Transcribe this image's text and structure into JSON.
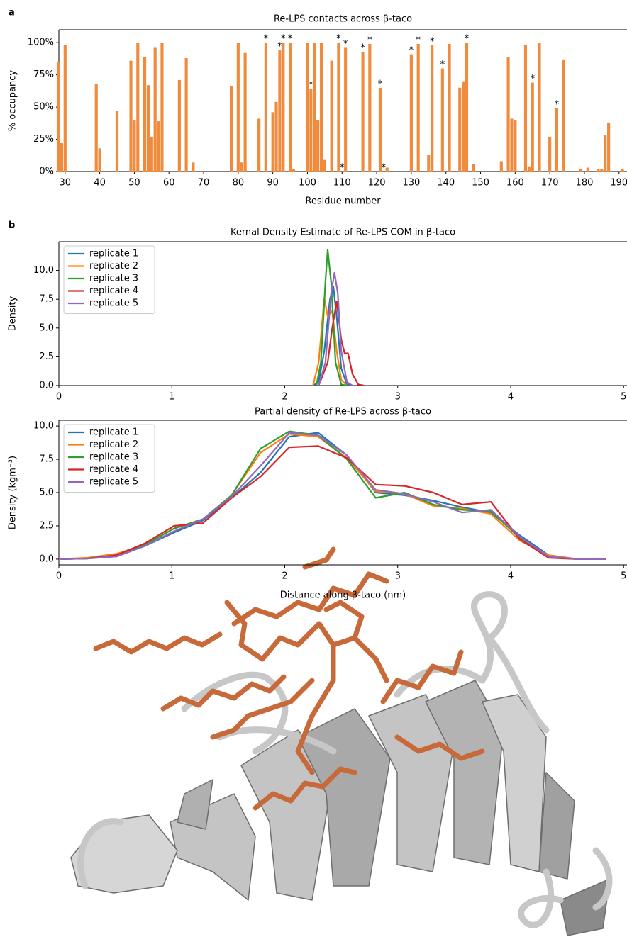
{
  "chart_data": [
    {
      "type": "bar",
      "panel_label": "a",
      "title": "Re-LPS contacts across β-taco",
      "xlabel": "Residue number",
      "ylabel": "% occupancy",
      "color": "#f08a3c",
      "x": [
        28,
        29,
        30,
        39,
        40,
        45,
        49,
        50,
        51,
        53,
        54,
        55,
        56,
        57,
        58,
        63,
        65,
        67,
        78,
        80,
        81,
        82,
        86,
        88,
        90,
        91,
        92,
        93,
        95,
        96,
        100,
        101,
        102,
        103,
        104,
        105,
        107,
        109,
        110,
        111,
        116,
        118,
        121,
        122,
        123,
        130,
        132,
        135,
        136,
        139,
        141,
        144,
        145,
        146,
        148,
        156,
        158,
        159,
        160,
        163,
        164,
        165,
        167,
        170,
        172,
        174,
        179,
        181,
        184,
        185,
        186,
        187,
        191
      ],
      "values": [
        85,
        22,
        98,
        68,
        18,
        47,
        86,
        40,
        100,
        89,
        67,
        27,
        96,
        39,
        100,
        71,
        88,
        7,
        66,
        100,
        7,
        92,
        41,
        100,
        46,
        54,
        94,
        100,
        100,
        2,
        100,
        64,
        100,
        40,
        100,
        9,
        86,
        100,
        0,
        96,
        93,
        99,
        65,
        0,
        3,
        91,
        99,
        13,
        98,
        80,
        99,
        65,
        70,
        100,
        6,
        8,
        89,
        41,
        40,
        98,
        4,
        69,
        100,
        27,
        49,
        87,
        2,
        3,
        2,
        2,
        28,
        38,
        2
      ],
      "annotations": [
        {
          "x": 88,
          "text": "*"
        },
        {
          "x": 92,
          "text": "*"
        },
        {
          "x": 93,
          "text": "*"
        },
        {
          "x": 95,
          "text": "*"
        },
        {
          "x": 101,
          "text": "*"
        },
        {
          "x": 109,
          "text": "*"
        },
        {
          "x": 110,
          "text": "*"
        },
        {
          "x": 111,
          "text": "*"
        },
        {
          "x": 116,
          "text": "*"
        },
        {
          "x": 118,
          "text": "*"
        },
        {
          "x": 121,
          "text": "*"
        },
        {
          "x": 122,
          "text": "*"
        },
        {
          "x": 130,
          "text": "*"
        },
        {
          "x": 132,
          "text": "*"
        },
        {
          "x": 136,
          "text": "*"
        },
        {
          "x": 139,
          "text": "*"
        },
        {
          "x": 146,
          "text": "*"
        },
        {
          "x": 165,
          "text": "*"
        },
        {
          "x": 172,
          "text": "*"
        }
      ],
      "xlim": [
        28.2,
        192.3
      ],
      "xticks": [
        30,
        40,
        50,
        60,
        70,
        80,
        90,
        100,
        110,
        120,
        130,
        140,
        150,
        160,
        170,
        180,
        190
      ],
      "ylim": [
        0,
        110
      ],
      "yticks": [
        {
          "value": 0,
          "label": "0%"
        },
        {
          "value": 25,
          "label": "25%"
        },
        {
          "value": 50,
          "label": "50%"
        },
        {
          "value": 75,
          "label": "75%"
        },
        {
          "value": 100,
          "label": "100%"
        }
      ]
    },
    {
      "type": "line",
      "panel_label": "b",
      "title": "Kernal Density Estimate of Re-LPS COM in β-taco",
      "ylabel": "Density",
      "legend": "upper left",
      "xlim": [
        0,
        5.03
      ],
      "xticks": [
        0,
        1,
        2,
        3,
        4,
        5
      ],
      "ylim": [
        0,
        12.5
      ],
      "yticks": [
        {
          "value": 0,
          "label": "0.0"
        },
        {
          "value": 2.5,
          "label": "2.5"
        },
        {
          "value": 5,
          "label": "5.0"
        },
        {
          "value": 7.5,
          "label": "7.5"
        },
        {
          "value": 10,
          "label": "10.0"
        }
      ],
      "series": [
        {
          "name": "replicate 1",
          "color": "#1f77b4",
          "x": [
            2.25,
            2.3,
            2.35,
            2.4,
            2.43,
            2.46,
            2.5,
            2.55,
            2.6
          ],
          "values": [
            0,
            0.3,
            3,
            7.5,
            8.6,
            6,
            1.5,
            0.1,
            0
          ]
        },
        {
          "name": "replicate 2",
          "color": "#ff7f0e",
          "x": [
            2.25,
            2.3,
            2.35,
            2.38,
            2.42,
            2.46,
            2.5,
            2.55
          ],
          "values": [
            0,
            2,
            7.6,
            6,
            6.5,
            3,
            0.5,
            0
          ]
        },
        {
          "name": "replicate 3",
          "color": "#2ca02c",
          "x": [
            2.28,
            2.32,
            2.36,
            2.38,
            2.41,
            2.45,
            2.5,
            2.55
          ],
          "values": [
            0,
            2,
            9,
            11.8,
            9,
            2,
            0.1,
            0
          ]
        },
        {
          "name": "replicate 4",
          "color": "#d62728",
          "x": [
            2.3,
            2.38,
            2.42,
            2.46,
            2.5,
            2.53,
            2.56,
            2.6,
            2.65,
            2.7
          ],
          "values": [
            0,
            2,
            5,
            7.3,
            4,
            2.8,
            2.8,
            1,
            0.1,
            0
          ]
        },
        {
          "name": "replicate 5",
          "color": "#9467bd",
          "x": [
            2.3,
            2.36,
            2.41,
            2.44,
            2.47,
            2.5,
            2.55,
            2.6
          ],
          "values": [
            0,
            2,
            8,
            9.8,
            8,
            3,
            0.3,
            0
          ]
        }
      ]
    },
    {
      "type": "line",
      "title": "Partial density of Re-LPS across β-taco",
      "xlabel": "Distance along β-taco (nm)",
      "ylabel": "Density (kgm⁻³)",
      "legend": "upper left",
      "xlim": [
        0,
        5.03
      ],
      "xticks": [
        0,
        1,
        2,
        3,
        4,
        5
      ],
      "ylim": [
        -0.43,
        10.43
      ],
      "yticks": [
        {
          "value": 0,
          "label": "0.0"
        },
        {
          "value": 2.5,
          "label": "2.5"
        },
        {
          "value": 5,
          "label": "5.0"
        },
        {
          "value": 7.5,
          "label": "7.5"
        },
        {
          "value": 10,
          "label": "10.0"
        }
      ],
      "x": [
        0,
        0.255,
        0.51,
        0.765,
        1.02,
        1.275,
        1.53,
        1.785,
        2.04,
        2.295,
        2.55,
        2.805,
        3.06,
        3.315,
        3.57,
        3.825,
        4.08,
        4.335,
        4.59,
        4.845
      ],
      "series": [
        {
          "name": "replicate 1",
          "color": "#1f77b4",
          "values": [
            0,
            0.05,
            0.2,
            1.0,
            2.0,
            2.9,
            4.6,
            6.5,
            9.2,
            9.5,
            7.8,
            5.0,
            4.8,
            4.4,
            3.9,
            3.5,
            1.8,
            0.3,
            0,
            0
          ]
        },
        {
          "name": "replicate 2",
          "color": "#ff7f0e",
          "values": [
            0,
            0.1,
            0.4,
            1.1,
            2.3,
            3.0,
            4.8,
            8.0,
            9.4,
            9.2,
            7.6,
            5.1,
            4.9,
            4.0,
            3.8,
            3.4,
            1.4,
            0.3,
            0,
            0
          ]
        },
        {
          "name": "replicate 3",
          "color": "#2ca02c",
          "values": [
            0,
            0.05,
            0.3,
            1.1,
            2.3,
            3.0,
            4.8,
            8.3,
            9.6,
            9.3,
            7.5,
            4.6,
            5.0,
            4.1,
            3.7,
            3.6,
            1.6,
            0.2,
            0,
            0
          ]
        },
        {
          "name": "replicate 4",
          "color": "#d62728",
          "values": [
            0,
            0.05,
            0.3,
            1.2,
            2.5,
            2.7,
            4.6,
            6.2,
            8.4,
            8.5,
            7.6,
            5.6,
            5.5,
            5.0,
            4.1,
            4.3,
            1.5,
            0.1,
            0,
            0
          ]
        },
        {
          "name": "replicate 5",
          "color": "#9467bd",
          "values": [
            0,
            0.05,
            0.2,
            1.0,
            2.1,
            3.0,
            4.7,
            7.0,
            9.5,
            9.3,
            7.8,
            5.2,
            4.9,
            4.3,
            3.5,
            3.7,
            1.7,
            0.2,
            0,
            0
          ]
        }
      ]
    }
  ]
}
